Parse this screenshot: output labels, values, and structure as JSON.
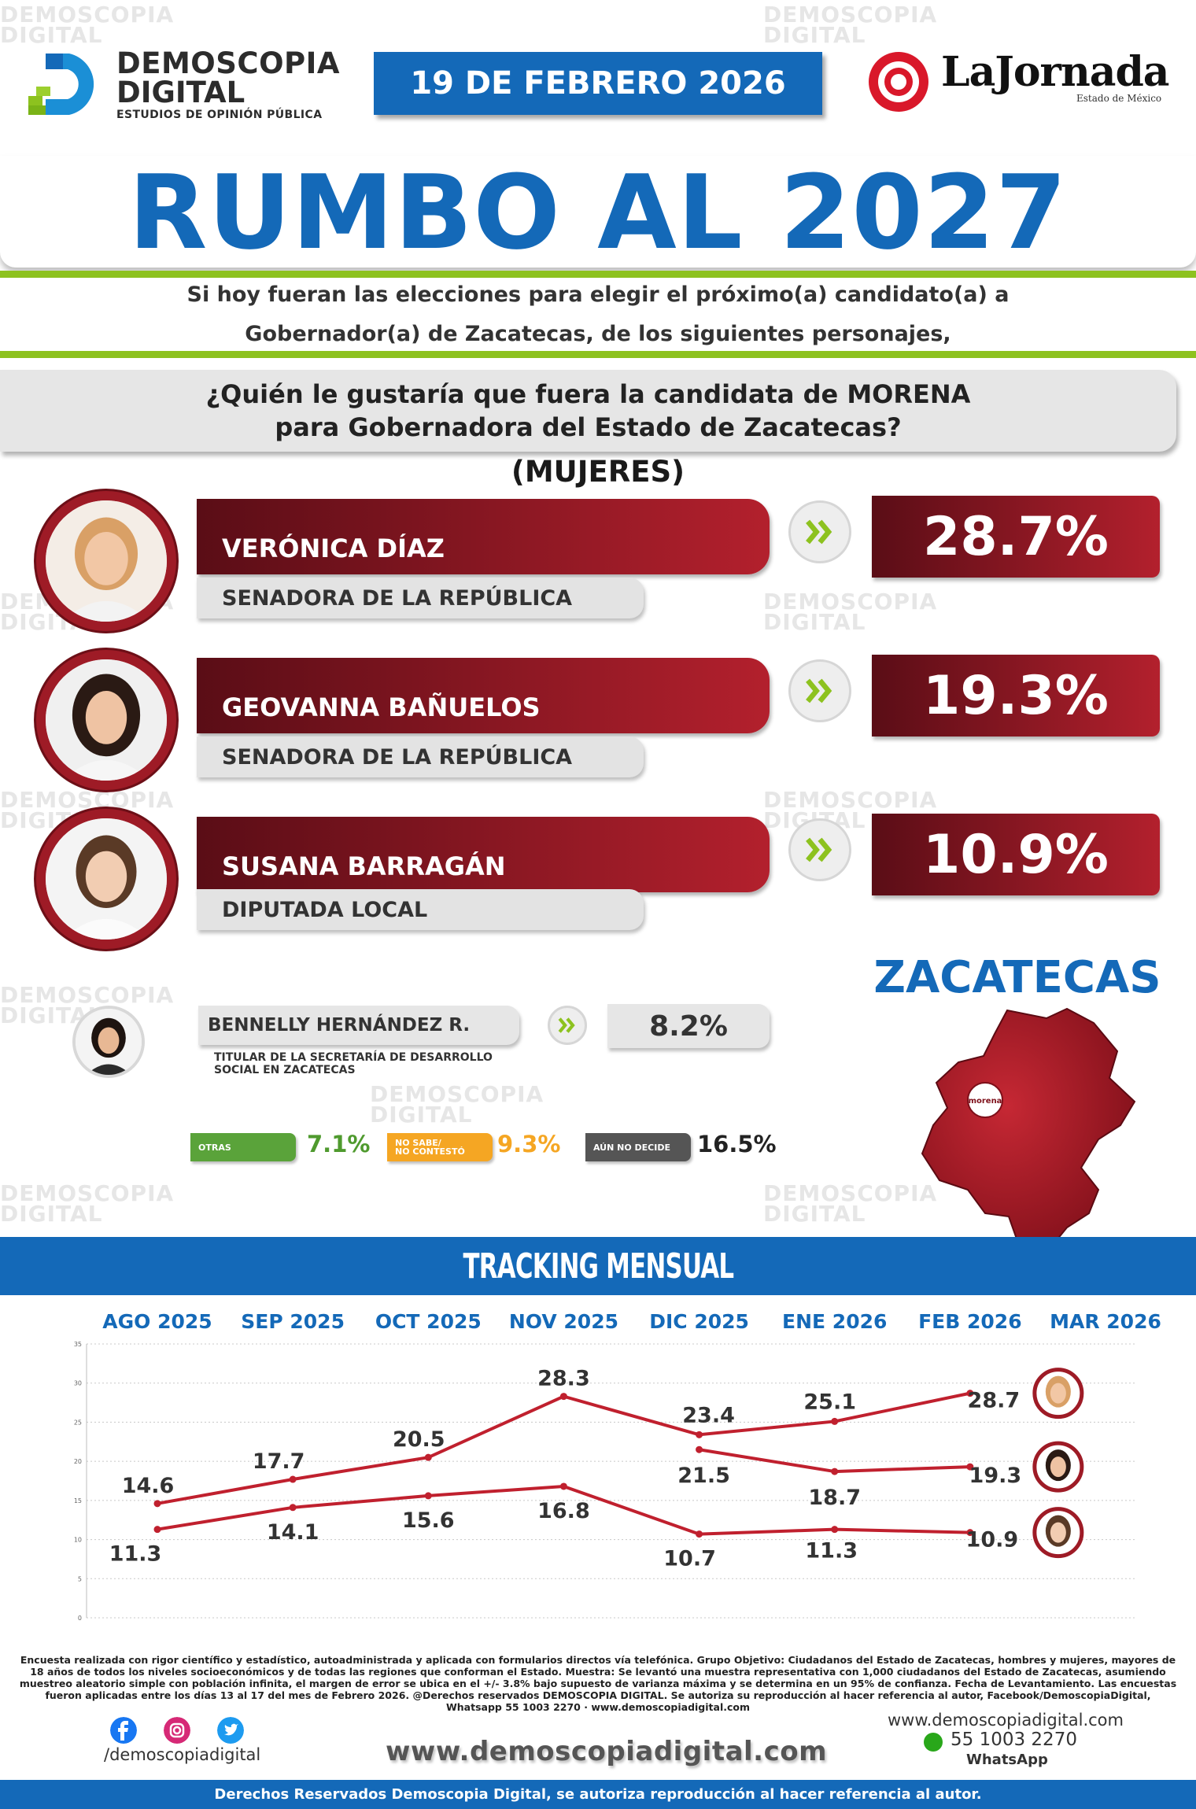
{
  "header": {
    "brand_line1": "DEMOSCOPIA",
    "brand_line2": "DIGITAL",
    "brand_tagline": "ESTUDIOS DE OPINIÓN PÚBLICA",
    "date": "19 DE FEBRERO 2026",
    "partner_name": "LaJornada",
    "partner_sub": "Estado de México"
  },
  "title": "RUMBO AL 2027",
  "intro": {
    "line1": "Si hoy fueran las elecciones para elegir el próximo(a) candidato(a) a",
    "line2": "Gobernador(a) de Zacatecas, de los siguientes personajes,"
  },
  "question": {
    "line1": "¿Quién le gustaría que fuera la candidata de MORENA",
    "line2": "para Gobernadora del Estado de Zacatecas?"
  },
  "segment": "(MUJERES)",
  "candidates": [
    {
      "name": "VERÓNICA DÍAZ",
      "role": "SENADORA DE LA REPÚBLICA",
      "pct": "28.7%"
    },
    {
      "name": "GEOVANNA BAÑUELOS",
      "role": "SENADORA DE LA REPÚBLICA",
      "pct": "19.3%"
    },
    {
      "name": "SUSANA BARRAGÁN",
      "role": "DIPUTADA LOCAL",
      "pct": "10.9%"
    }
  ],
  "other_candidate": {
    "name": "BENNELLY HERNÁNDEZ R.",
    "role_line1": "TITULAR DE LA SECRETARÍA DE DESARROLLO",
    "role_line2": "SOCIAL EN ZACATECAS",
    "pct": "8.2%"
  },
  "extras": [
    {
      "label_line1": "OTRAS",
      "label_line2": "",
      "value": "7.1%",
      "color": "#5aa33a",
      "value_color": "#4f9a2e"
    },
    {
      "label_line1": "NO SABE/",
      "label_line2": "NO CONTESTÓ",
      "value": "9.3%",
      "color": "#f5a623",
      "value_color": "#f5a623"
    },
    {
      "label_line1": "AÚN NO DECIDE",
      "label_line2": "",
      "value": "16.5%",
      "color": "#555555",
      "value_color": "#222222"
    }
  ],
  "state": {
    "name": "ZACATECAS",
    "map_label": "morena"
  },
  "tracking": {
    "title": "TRACKING MENSUAL"
  },
  "chart_data": {
    "type": "line",
    "categories": [
      "AGO 2025",
      "SEP 2025",
      "OCT 2025",
      "NOV 2025",
      "DIC 2025",
      "ENE 2026",
      "FEB 2026",
      "MAR 2026"
    ],
    "ylim": [
      0,
      35
    ],
    "yticks": [
      0,
      5,
      10,
      15,
      20,
      25,
      30,
      35
    ],
    "grid": true,
    "series": [
      {
        "values": [
          14.6,
          17.7,
          20.5,
          28.3,
          23.4,
          25.1,
          28.7,
          null
        ],
        "color": "#c0202e"
      },
      {
        "values": [
          null,
          null,
          null,
          null,
          21.5,
          18.7,
          19.3,
          null
        ],
        "color": "#c0202e"
      },
      {
        "values": [
          11.3,
          14.1,
          15.6,
          16.8,
          10.7,
          11.3,
          10.9,
          null
        ],
        "color": "#c0202e"
      }
    ]
  },
  "footer": {
    "note": "Encuesta realizada con rigor científico y estadístico, autoadministrada y aplicada con formularios directos vía telefónica. Grupo Objetivo: Ciudadanos del Estado de Zacatecas, hombres y mujeres, mayores de 18 años de todos los niveles socioeconómicos y de todas las regiones que conforman el Estado. Muestra: Se levantó una muestra representativa con 1,000 ciudadanos del Estado de Zacatecas, asumiendo muestreo aleatorio simple con población infinita, el margen de error se ubica en el +/- 3.8% bajo supuesto de varianza máxima y se determina en un 95% de confianza. Fecha de Levantamiento. Las encuestas fueron aplicadas entre los días 13 al 17 del mes de Febrero 2026. @Derechos reservados DEMOSCOPIA DIGITAL. Se autoriza su reproducción al hacer referencia al autor, Facebook/DemoscopiaDigital, Whatsapp 55 1003 2270 · www.demoscopiadigital.com",
    "handle": "/demoscopiadigital",
    "website": "www.demoscopiadigital.com",
    "right_site": "www.demoscopiadigital.com",
    "phone": "55 1003 2270",
    "whatsapp_label": "WhatsApp",
    "rights": "Derechos Reservados Demoscopia Digital, se autoriza reproducción al hacer referencia al autor."
  }
}
